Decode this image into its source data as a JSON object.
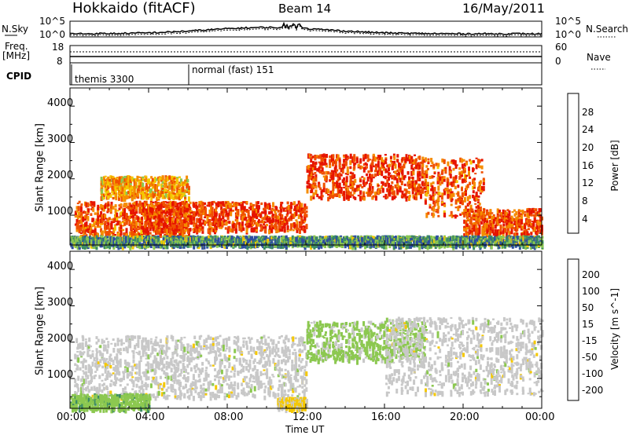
{
  "header": {
    "radar": "Hokkaido (fitACF)",
    "beam": "Beam 14",
    "date": "16/May/2011"
  },
  "noise_panel": {
    "left_label": "N.Sky",
    "right_label": "N.Search",
    "ticks": [
      "10^5",
      "10^0"
    ]
  },
  "freq_panel": {
    "left_label_1": "Freq.",
    "left_label_2": "[MHz]",
    "left_ticks": [
      "18",
      "8"
    ],
    "right_label": "Nave",
    "right_ticks": [
      "60",
      "0"
    ]
  },
  "cpid_panel": {
    "label": "CPID",
    "modes": [
      "themis 3300",
      "normal (fast) 151"
    ]
  },
  "colors": {
    "scale_power": [
      "#0000ff",
      "#2d4ea0",
      "#3c8c64",
      "#8cc850",
      "#f5c800",
      "#f58c00",
      "#f05000",
      "#e61400"
    ],
    "scale_velocity": [
      "#e60000",
      "#f05000",
      "#f5a000",
      "#f5c800",
      "#c8c8c8",
      "#8cc850",
      "#3c8c64",
      "#2d4ea0",
      "#1e1eb4"
    ]
  },
  "chart_data": [
    {
      "type": "heatmap",
      "panel": "power",
      "xlabel": "Time UT",
      "ylabel": "Slant Range [km]",
      "x_ticks": [
        "00:00",
        "04:00",
        "08:00",
        "12:00",
        "16:00",
        "20:00",
        "00:00"
      ],
      "y_ticks": [
        "1000",
        "2000",
        "3000",
        "4000"
      ],
      "xlim_hours": [
        0,
        24
      ],
      "ylim_km": [
        180,
        4500
      ],
      "colorbar": {
        "label": "Power [dB]",
        "ticks": [
          "28",
          "24",
          "20",
          "16",
          "12",
          "8",
          "4"
        ],
        "range": [
          0,
          30
        ]
      },
      "echo_bands": [
        {
          "t0": 0.2,
          "t1": 6.0,
          "r0": 450,
          "r1": 1400,
          "level": 24
        },
        {
          "t0": 1.5,
          "t1": 6.0,
          "r0": 1500,
          "r1": 2100,
          "level": 20
        },
        {
          "t0": 3.0,
          "t1": 12.0,
          "r0": 600,
          "r1": 1400,
          "level": 26
        },
        {
          "t0": 12.0,
          "t1": 18.0,
          "r0": 1500,
          "r1": 2700,
          "level": 26
        },
        {
          "t0": 18.0,
          "t1": 21.0,
          "r0": 1000,
          "r1": 2600,
          "level": 24
        },
        {
          "t0": 20.0,
          "t1": 24.0,
          "r0": 500,
          "r1": 1200,
          "level": 25
        },
        {
          "t0": 0.0,
          "t1": 24.0,
          "r0": 180,
          "r1": 450,
          "level": 10
        }
      ]
    },
    {
      "type": "heatmap",
      "panel": "velocity",
      "xlabel": "Time UT",
      "ylabel": "Slant Range [km]",
      "x_ticks": [
        "00:00",
        "04:00",
        "08:00",
        "12:00",
        "16:00",
        "20:00",
        "00:00"
      ],
      "y_ticks": [
        "1000",
        "2000",
        "3000",
        "4000"
      ],
      "xlim_hours": [
        0,
        24
      ],
      "ylim_km": [
        180,
        4500
      ],
      "colorbar": {
        "label": "Velocity [m s^-1]",
        "ticks": [
          "200",
          "100",
          "50",
          "15",
          "-15",
          "-50",
          "-100",
          "-200"
        ],
        "range": [
          -250,
          250
        ]
      },
      "echo_bands": [
        {
          "t0": 0.2,
          "t1": 12.0,
          "r0": 500,
          "r1": 2200,
          "level": 0
        },
        {
          "t0": 12.0,
          "t1": 18.0,
          "r0": 1500,
          "r1": 2600,
          "level": -40
        },
        {
          "t0": 16.0,
          "t1": 24.0,
          "r0": 600,
          "r1": 2700,
          "level": 0
        },
        {
          "t0": 10.5,
          "t1": 12.0,
          "r0": 180,
          "r1": 500,
          "level": 40
        },
        {
          "t0": 0.0,
          "t1": 4.0,
          "r0": 180,
          "r1": 600,
          "level": -60
        }
      ]
    }
  ]
}
